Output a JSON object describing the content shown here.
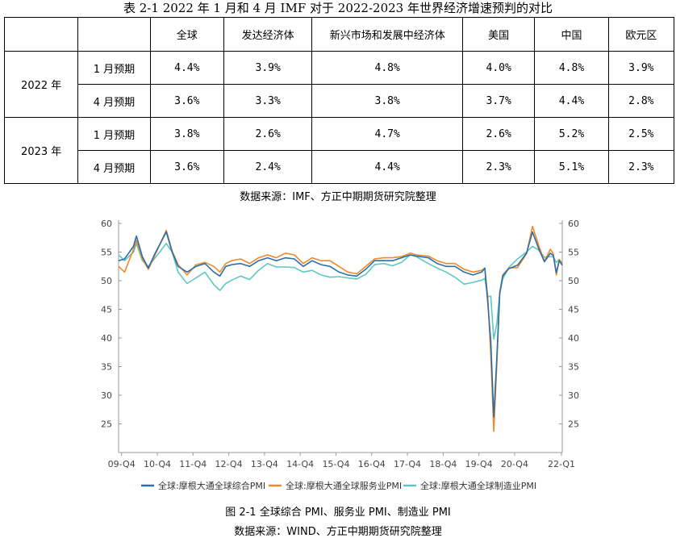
{
  "table": {
    "title": "表 2-1 2022 年 1 月和 4 月 IMF 对于 2022-2023 年世界经济增速预判的对比",
    "headers": [
      "",
      "",
      "全球",
      "发达经济体",
      "新兴市场和发展中经济体",
      "美国",
      "中国",
      "欧元区"
    ],
    "groups": [
      {
        "year": "2022 年",
        "rows": [
          {
            "label": "1 月预期",
            "values": [
              "4.4%",
              "3.9%",
              "4.8%",
              "4.0%",
              "4.8%",
              "3.9%"
            ]
          },
          {
            "label": "4 月预期",
            "values": [
              "3.6%",
              "3.3%",
              "3.8%",
              "3.7%",
              "4.4%",
              "2.8%"
            ]
          }
        ]
      },
      {
        "year": "2023 年",
        "rows": [
          {
            "label": "1 月预期",
            "values": [
              "3.8%",
              "2.6%",
              "4.7%",
              "2.6%",
              "5.2%",
              "2.5%"
            ]
          },
          {
            "label": "4 月预期",
            "values": [
              "3.6%",
              "2.4%",
              "4.4%",
              "2.3%",
              "5.1%",
              "2.3%"
            ]
          }
        ]
      }
    ],
    "source": "数据来源：IMF、方正中期期货研究院整理"
  },
  "chart_data": {
    "type": "line",
    "title": "",
    "ylim": [
      20,
      60
    ],
    "y_ticks": [
      25,
      30,
      35,
      40,
      45,
      50,
      55,
      60
    ],
    "x_start": "2009-10",
    "x_end": "2022-03",
    "x_tick_labels": [
      "09-Q4",
      "10-Q4",
      "11-Q4",
      "12-Q4",
      "13-Q4",
      "14-Q4",
      "15-Q4",
      "16-Q4",
      "17-Q4",
      "18-Q4",
      "19-Q4",
      "20-Q4",
      "22-Q1"
    ],
    "grid": false,
    "legend": "bottom",
    "series": [
      {
        "name": "全球:摩根大通全球综合PMI",
        "color": "#2a6fad",
        "points": [
          [
            "2009-10",
            53.5
          ],
          [
            "2009-12",
            53.8
          ],
          [
            "2010-03",
            56.0
          ],
          [
            "2010-04",
            57.8
          ],
          [
            "2010-06",
            54.2
          ],
          [
            "2010-08",
            52.2
          ],
          [
            "2010-10",
            54.5
          ],
          [
            "2011-02",
            58.5
          ],
          [
            "2011-04",
            55.0
          ],
          [
            "2011-06",
            52.5
          ],
          [
            "2011-09",
            51.5
          ],
          [
            "2011-12",
            52.5
          ],
          [
            "2012-03",
            53.0
          ],
          [
            "2012-06",
            51.5
          ],
          [
            "2012-08",
            50.8
          ],
          [
            "2012-10",
            52.5
          ],
          [
            "2012-12",
            52.8
          ],
          [
            "2013-03",
            53.0
          ],
          [
            "2013-06",
            52.5
          ],
          [
            "2013-09",
            53.5
          ],
          [
            "2013-12",
            54.0
          ],
          [
            "2014-03",
            53.5
          ],
          [
            "2014-06",
            54.0
          ],
          [
            "2014-09",
            53.8
          ],
          [
            "2014-12",
            52.5
          ],
          [
            "2015-03",
            53.5
          ],
          [
            "2015-06",
            52.8
          ],
          [
            "2015-09",
            52.5
          ],
          [
            "2015-12",
            51.5
          ],
          [
            "2016-03",
            51.0
          ],
          [
            "2016-06",
            50.8
          ],
          [
            "2016-09",
            52.0
          ],
          [
            "2016-12",
            53.5
          ],
          [
            "2017-03",
            53.5
          ],
          [
            "2017-06",
            53.5
          ],
          [
            "2017-09",
            54.0
          ],
          [
            "2017-12",
            54.5
          ],
          [
            "2018-02",
            54.3
          ],
          [
            "2018-06",
            54.0
          ],
          [
            "2018-09",
            53.0
          ],
          [
            "2018-12",
            52.5
          ],
          [
            "2019-03",
            52.5
          ],
          [
            "2019-06",
            51.5
          ],
          [
            "2019-09",
            51.0
          ],
          [
            "2019-12",
            51.5
          ],
          [
            "2020-01",
            52.2
          ],
          [
            "2020-02",
            46.1
          ],
          [
            "2020-03",
            39.4
          ],
          [
            "2020-04",
            26.2
          ],
          [
            "2020-05",
            36.3
          ],
          [
            "2020-06",
            47.7
          ],
          [
            "2020-07",
            50.8
          ],
          [
            "2020-09",
            52.1
          ],
          [
            "2020-12",
            52.7
          ],
          [
            "2021-03",
            54.8
          ],
          [
            "2021-05",
            58.5
          ],
          [
            "2021-07",
            55.7
          ],
          [
            "2021-09",
            53.3
          ],
          [
            "2021-11",
            54.8
          ],
          [
            "2021-12",
            54.4
          ],
          [
            "2022-01",
            51.4
          ],
          [
            "2022-02",
            53.5
          ],
          [
            "2022-03",
            52.7
          ]
        ]
      },
      {
        "name": "全球:摩根大通全球服务业PMI",
        "color": "#f0892a",
        "points": [
          [
            "2009-10",
            52.5
          ],
          [
            "2009-12",
            51.5
          ],
          [
            "2010-03",
            55.5
          ],
          [
            "2010-04",
            57.0
          ],
          [
            "2010-06",
            53.8
          ],
          [
            "2010-08",
            52.0
          ],
          [
            "2010-10",
            54.2
          ],
          [
            "2011-02",
            58.8
          ],
          [
            "2011-04",
            55.2
          ],
          [
            "2011-06",
            52.8
          ],
          [
            "2011-09",
            51.0
          ],
          [
            "2011-12",
            52.8
          ],
          [
            "2012-03",
            53.2
          ],
          [
            "2012-06",
            52.5
          ],
          [
            "2012-08",
            51.5
          ],
          [
            "2012-10",
            53.0
          ],
          [
            "2012-12",
            53.5
          ],
          [
            "2013-03",
            53.8
          ],
          [
            "2013-06",
            53.0
          ],
          [
            "2013-09",
            54.0
          ],
          [
            "2013-12",
            54.5
          ],
          [
            "2014-03",
            54.0
          ],
          [
            "2014-06",
            54.8
          ],
          [
            "2014-09",
            54.5
          ],
          [
            "2014-12",
            53.0
          ],
          [
            "2015-03",
            54.0
          ],
          [
            "2015-06",
            53.5
          ],
          [
            "2015-09",
            53.5
          ],
          [
            "2015-12",
            52.5
          ],
          [
            "2016-03",
            51.5
          ],
          [
            "2016-06",
            51.2
          ],
          [
            "2016-09",
            52.5
          ],
          [
            "2016-12",
            53.8
          ],
          [
            "2017-03",
            54.0
          ],
          [
            "2017-06",
            54.0
          ],
          [
            "2017-09",
            54.2
          ],
          [
            "2017-12",
            54.8
          ],
          [
            "2018-02",
            54.5
          ],
          [
            "2018-06",
            54.3
          ],
          [
            "2018-09",
            53.5
          ],
          [
            "2018-12",
            53.0
          ],
          [
            "2019-03",
            53.0
          ],
          [
            "2019-06",
            52.0
          ],
          [
            "2019-09",
            51.5
          ],
          [
            "2019-12",
            51.8
          ],
          [
            "2020-01",
            52.2
          ],
          [
            "2020-02",
            47.1
          ],
          [
            "2020-03",
            37.0
          ],
          [
            "2020-04",
            23.7
          ],
          [
            "2020-05",
            35.1
          ],
          [
            "2020-06",
            48.0
          ],
          [
            "2020-07",
            51.0
          ],
          [
            "2020-09",
            52.2
          ],
          [
            "2020-12",
            52.3
          ],
          [
            "2021-03",
            54.7
          ],
          [
            "2021-05",
            59.5
          ],
          [
            "2021-07",
            56.3
          ],
          [
            "2021-09",
            53.4
          ],
          [
            "2021-11",
            55.5
          ],
          [
            "2021-12",
            54.7
          ],
          [
            "2022-01",
            51.0
          ],
          [
            "2022-02",
            53.7
          ],
          [
            "2022-03",
            53.0
          ]
        ]
      },
      {
        "name": "全球:摩根大通全球制造业PMI",
        "color": "#5ec8c0",
        "points": [
          [
            "2009-10",
            54.5
          ],
          [
            "2009-12",
            53.5
          ],
          [
            "2010-03",
            55.0
          ],
          [
            "2010-04",
            56.5
          ],
          [
            "2010-06",
            53.5
          ],
          [
            "2010-08",
            52.5
          ],
          [
            "2010-10",
            53.8
          ],
          [
            "2011-02",
            56.5
          ],
          [
            "2011-04",
            55.0
          ],
          [
            "2011-06",
            51.5
          ],
          [
            "2011-09",
            49.5
          ],
          [
            "2011-12",
            50.5
          ],
          [
            "2012-03",
            51.5
          ],
          [
            "2012-06",
            49.3
          ],
          [
            "2012-08",
            48.3
          ],
          [
            "2012-10",
            49.5
          ],
          [
            "2012-12",
            50.1
          ],
          [
            "2013-03",
            50.8
          ],
          [
            "2013-06",
            50.2
          ],
          [
            "2013-09",
            51.8
          ],
          [
            "2013-12",
            53.0
          ],
          [
            "2014-03",
            52.4
          ],
          [
            "2014-06",
            52.4
          ],
          [
            "2014-09",
            52.3
          ],
          [
            "2014-12",
            51.5
          ],
          [
            "2015-03",
            51.8
          ],
          [
            "2015-06",
            51.0
          ],
          [
            "2015-09",
            50.6
          ],
          [
            "2015-12",
            50.7
          ],
          [
            "2016-03",
            50.5
          ],
          [
            "2016-06",
            50.3
          ],
          [
            "2016-09",
            51.1
          ],
          [
            "2016-12",
            52.8
          ],
          [
            "2017-03",
            53.0
          ],
          [
            "2017-06",
            52.6
          ],
          [
            "2017-09",
            53.2
          ],
          [
            "2017-12",
            54.5
          ],
          [
            "2018-02",
            54.2
          ],
          [
            "2018-06",
            53.0
          ],
          [
            "2018-09",
            52.2
          ],
          [
            "2018-12",
            51.5
          ],
          [
            "2019-03",
            50.6
          ],
          [
            "2019-06",
            49.4
          ],
          [
            "2019-09",
            49.7
          ],
          [
            "2019-12",
            50.1
          ],
          [
            "2020-01",
            50.4
          ],
          [
            "2020-02",
            47.2
          ],
          [
            "2020-03",
            47.3
          ],
          [
            "2020-04",
            39.8
          ],
          [
            "2020-05",
            42.4
          ],
          [
            "2020-06",
            47.9
          ],
          [
            "2020-07",
            50.3
          ],
          [
            "2020-09",
            52.3
          ],
          [
            "2020-12",
            53.8
          ],
          [
            "2021-03",
            55.0
          ],
          [
            "2021-05",
            56.0
          ],
          [
            "2021-07",
            55.4
          ],
          [
            "2021-09",
            54.1
          ],
          [
            "2021-11",
            54.2
          ],
          [
            "2021-12",
            54.2
          ],
          [
            "2022-01",
            53.2
          ],
          [
            "2022-02",
            53.7
          ],
          [
            "2022-03",
            53.0
          ]
        ]
      }
    ]
  },
  "chart_caption": "图 2-1 全球综合 PMI、服务业 PMI、制造业 PMI",
  "chart_source": "数据来源：WIND、方正中期期货研究院整理"
}
